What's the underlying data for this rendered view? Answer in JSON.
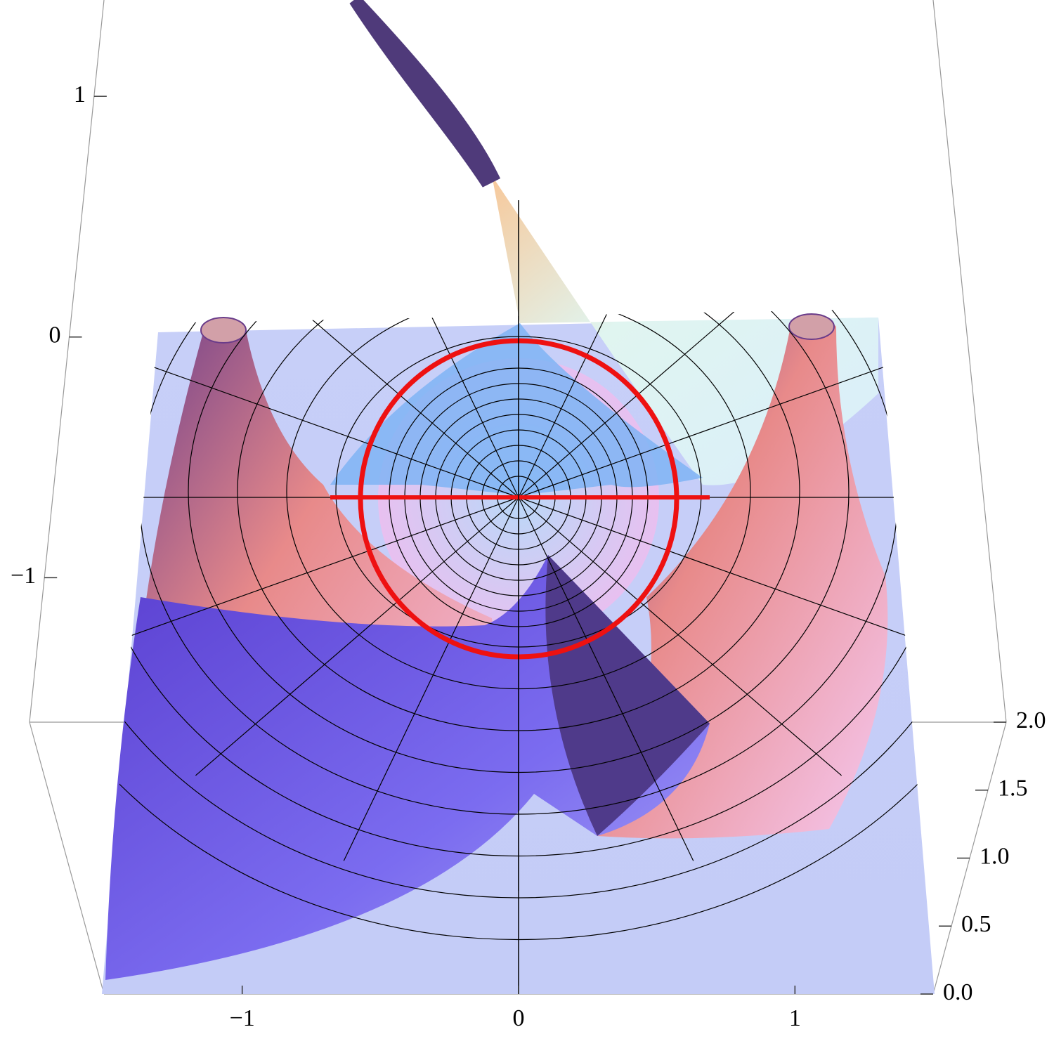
{
  "chart_data": {
    "type": "surface3d",
    "xlim": [
      -1.5,
      1.5
    ],
    "xticks": [
      {
        "value": -1,
        "label": "−1"
      },
      0,
      1
    ],
    "ylim": [
      0,
      2
    ],
    "yticks": [
      {
        "value": 0,
        "label": "0.0"
      },
      0.5,
      {
        "value": 1,
        "label": "1.0"
      },
      1.5,
      {
        "value": 2,
        "label": "2.0"
      }
    ],
    "zlim": [
      -1.6,
      1.4
    ],
    "zticks": [
      {
        "value": -1,
        "label": "−1"
      },
      0,
      1
    ]
  }
}
